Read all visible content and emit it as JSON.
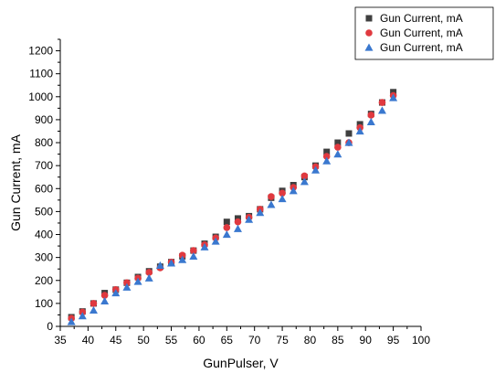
{
  "chart_data": {
    "type": "scatter",
    "title": "",
    "xlabel": "GunPulser, V",
    "ylabel": "Gun Current, mA",
    "xlim": [
      35,
      100
    ],
    "ylim": [
      0,
      1250
    ],
    "xticks": [
      "35",
      "40",
      "45",
      "50",
      "55",
      "60",
      "65",
      "70",
      "75",
      "80",
      "85",
      "90",
      "95",
      "100"
    ],
    "yticks": [
      "0",
      "100",
      "200",
      "300",
      "400",
      "500",
      "600",
      "700",
      "800",
      "900",
      "1000",
      "1100",
      "1200"
    ],
    "x": [
      37,
      39,
      41,
      43,
      45,
      47,
      49,
      51,
      53,
      55,
      57,
      59,
      61,
      63,
      65,
      67,
      69,
      71,
      73,
      75,
      77,
      79,
      81,
      83,
      85,
      87,
      89,
      91,
      93,
      95
    ],
    "grid": false,
    "legend_position": "top-right",
    "series": [
      {
        "name": "Gun Current, mA",
        "marker": "square",
        "color": "#3f3f3f",
        "values": [
          40,
          65,
          100,
          145,
          160,
          190,
          215,
          240,
          260,
          280,
          305,
          330,
          360,
          390,
          455,
          470,
          480,
          510,
          560,
          590,
          615,
          650,
          700,
          760,
          800,
          840,
          880,
          925,
          975,
          1020
        ]
      },
      {
        "name": "Gun Current, mA",
        "marker": "circle",
        "color": "#e0393f",
        "values": [
          35,
          62,
          100,
          135,
          160,
          190,
          210,
          235,
          255,
          280,
          310,
          330,
          355,
          385,
          430,
          455,
          475,
          510,
          565,
          580,
          605,
          655,
          695,
          740,
          780,
          800,
          865,
          920,
          975,
          1005
        ]
      },
      {
        "name": "Gun Current, mA",
        "marker": "triangle",
        "color": "#3a78cf",
        "values": [
          20,
          45,
          70,
          110,
          145,
          170,
          195,
          210,
          265,
          275,
          290,
          305,
          345,
          370,
          400,
          425,
          465,
          495,
          530,
          555,
          590,
          630,
          680,
          720,
          750,
          800,
          850,
          890,
          940,
          995
        ]
      }
    ]
  }
}
